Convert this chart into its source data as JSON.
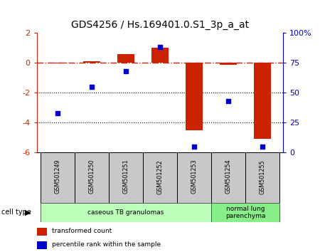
{
  "title": "GDS4256 / Hs.169401.0.S1_3p_a_at",
  "samples": [
    "GSM501249",
    "GSM501250",
    "GSM501251",
    "GSM501252",
    "GSM501253",
    "GSM501254",
    "GSM501255"
  ],
  "transformed_count": [
    -0.05,
    0.12,
    0.55,
    1.0,
    -4.5,
    -0.12,
    -5.1
  ],
  "percentile_rank": [
    33,
    55,
    68,
    88,
    5,
    43,
    5
  ],
  "ylim_left": [
    -6,
    2
  ],
  "ylim_right": [
    0,
    100
  ],
  "left_yticks": [
    -6,
    -4,
    -2,
    0,
    2
  ],
  "right_yticks": [
    0,
    25,
    50,
    75,
    100
  ],
  "right_yticklabels": [
    "0",
    "25",
    "50",
    "75",
    "100%"
  ],
  "bar_color": "#cc2200",
  "dot_color": "#0000cc",
  "sample_box_color": "#c8c8c8",
  "groups": [
    {
      "label": "caseous TB granulomas",
      "start": 0,
      "end": 4,
      "color": "#bbffbb"
    },
    {
      "label": "normal lung\nparenchyma",
      "start": 5,
      "end": 6,
      "color": "#88ee88"
    }
  ],
  "legend_items": [
    {
      "label": "transformed count",
      "color": "#cc2200"
    },
    {
      "label": "percentile rank within the sample",
      "color": "#0000cc"
    }
  ],
  "cell_type_label": "cell type",
  "dotted_line_values": [
    -2,
    -4
  ],
  "zero_line_value": 0,
  "bar_width": 0.5
}
